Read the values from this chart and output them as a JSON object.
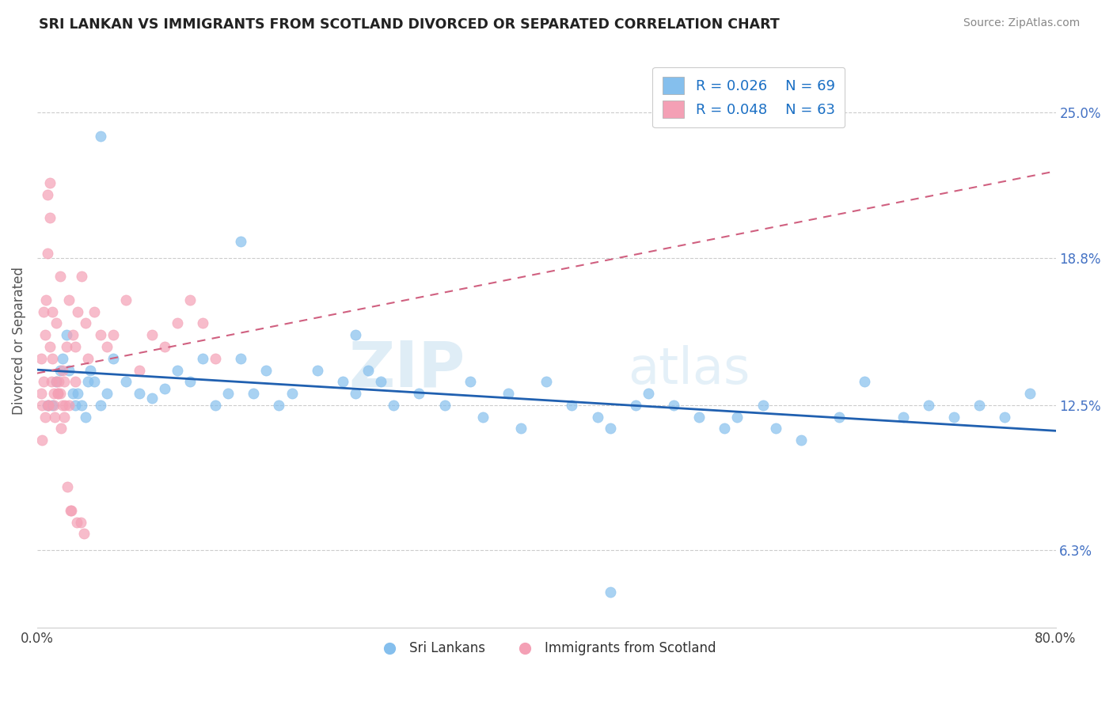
{
  "title": "SRI LANKAN VS IMMIGRANTS FROM SCOTLAND DIVORCED OR SEPARATED CORRELATION CHART",
  "source_text": "Source: ZipAtlas.com",
  "ylabel": "Divorced or Separated",
  "x_tick_labels": [
    "0.0%",
    "80.0%"
  ],
  "y_tick_values": [
    6.3,
    12.5,
    18.8,
    25.0
  ],
  "x_min": 0.0,
  "x_max": 80.0,
  "y_min": 3.0,
  "y_max": 27.5,
  "legend_label_1": "Sri Lankans",
  "legend_label_2": "Immigrants from Scotland",
  "legend_r1": "R = 0.026",
  "legend_n1": "N = 69",
  "legend_r2": "R = 0.048",
  "legend_n2": "N = 63",
  "color_blue": "#85bfed",
  "color_pink": "#f4a0b5",
  "trendline_blue": "#2060b0",
  "trendline_pink": "#d06080",
  "watermark_zip": "ZIP",
  "watermark_atlas": "atlas",
  "background_color": "#ffffff",
  "sri_lankans_x": [
    0.8,
    1.2,
    1.5,
    1.8,
    2.0,
    2.3,
    2.5,
    2.8,
    3.0,
    3.2,
    3.5,
    3.8,
    4.0,
    4.2,
    4.5,
    5.0,
    5.5,
    6.0,
    7.0,
    8.0,
    9.0,
    10.0,
    11.0,
    12.0,
    13.0,
    14.0,
    15.0,
    16.0,
    17.0,
    18.0,
    19.0,
    20.0,
    22.0,
    24.0,
    25.0,
    26.0,
    27.0,
    28.0,
    30.0,
    32.0,
    34.0,
    35.0,
    37.0,
    38.0,
    40.0,
    42.0,
    44.0,
    45.0,
    47.0,
    48.0,
    50.0,
    52.0,
    54.0,
    55.0,
    57.0,
    58.0,
    60.0,
    63.0,
    65.0,
    68.0,
    70.0,
    72.0,
    74.0,
    76.0,
    78.0,
    5.0,
    16.0,
    25.0,
    45.0
  ],
  "sri_lankans_y": [
    12.5,
    12.5,
    13.5,
    14.0,
    14.5,
    15.5,
    14.0,
    13.0,
    12.5,
    13.0,
    12.5,
    12.0,
    13.5,
    14.0,
    13.5,
    12.5,
    13.0,
    14.5,
    13.5,
    13.0,
    12.8,
    13.2,
    14.0,
    13.5,
    14.5,
    12.5,
    13.0,
    14.5,
    13.0,
    14.0,
    12.5,
    13.0,
    14.0,
    13.5,
    13.0,
    14.0,
    13.5,
    12.5,
    13.0,
    12.5,
    13.5,
    12.0,
    13.0,
    11.5,
    13.5,
    12.5,
    12.0,
    11.5,
    12.5,
    13.0,
    12.5,
    12.0,
    11.5,
    12.0,
    12.5,
    11.5,
    11.0,
    12.0,
    13.5,
    12.0,
    12.5,
    12.0,
    12.5,
    12.0,
    13.0,
    24.0,
    19.5,
    15.5,
    4.5
  ],
  "immigrants_x": [
    0.3,
    0.3,
    0.4,
    0.5,
    0.5,
    0.6,
    0.7,
    0.8,
    0.8,
    0.9,
    1.0,
    1.0,
    1.0,
    1.1,
    1.2,
    1.2,
    1.3,
    1.4,
    1.5,
    1.5,
    1.6,
    1.7,
    1.8,
    1.8,
    1.9,
    2.0,
    2.0,
    2.1,
    2.2,
    2.3,
    2.5,
    2.5,
    2.6,
    2.8,
    3.0,
    3.0,
    3.2,
    3.5,
    3.8,
    4.0,
    4.5,
    5.0,
    5.5,
    6.0,
    7.0,
    8.0,
    9.0,
    10.0,
    11.0,
    12.0,
    13.0,
    14.0,
    0.4,
    0.6,
    0.9,
    1.3,
    1.6,
    2.1,
    2.4,
    2.7,
    3.1,
    3.4,
    3.7
  ],
  "immigrants_y": [
    13.0,
    14.5,
    12.5,
    16.5,
    13.5,
    15.5,
    17.0,
    21.5,
    19.0,
    12.5,
    22.0,
    20.5,
    15.0,
    13.5,
    16.5,
    14.5,
    13.0,
    12.0,
    16.0,
    13.5,
    13.0,
    13.5,
    18.0,
    13.0,
    11.5,
    14.0,
    12.5,
    13.5,
    12.5,
    15.0,
    17.0,
    12.5,
    8.0,
    15.5,
    15.0,
    13.5,
    16.5,
    18.0,
    16.0,
    14.5,
    16.5,
    15.5,
    15.0,
    15.5,
    17.0,
    14.0,
    15.5,
    15.0,
    16.0,
    17.0,
    16.0,
    14.5,
    11.0,
    12.0,
    12.5,
    12.5,
    13.0,
    12.0,
    9.0,
    8.0,
    7.5,
    7.5,
    7.0
  ]
}
